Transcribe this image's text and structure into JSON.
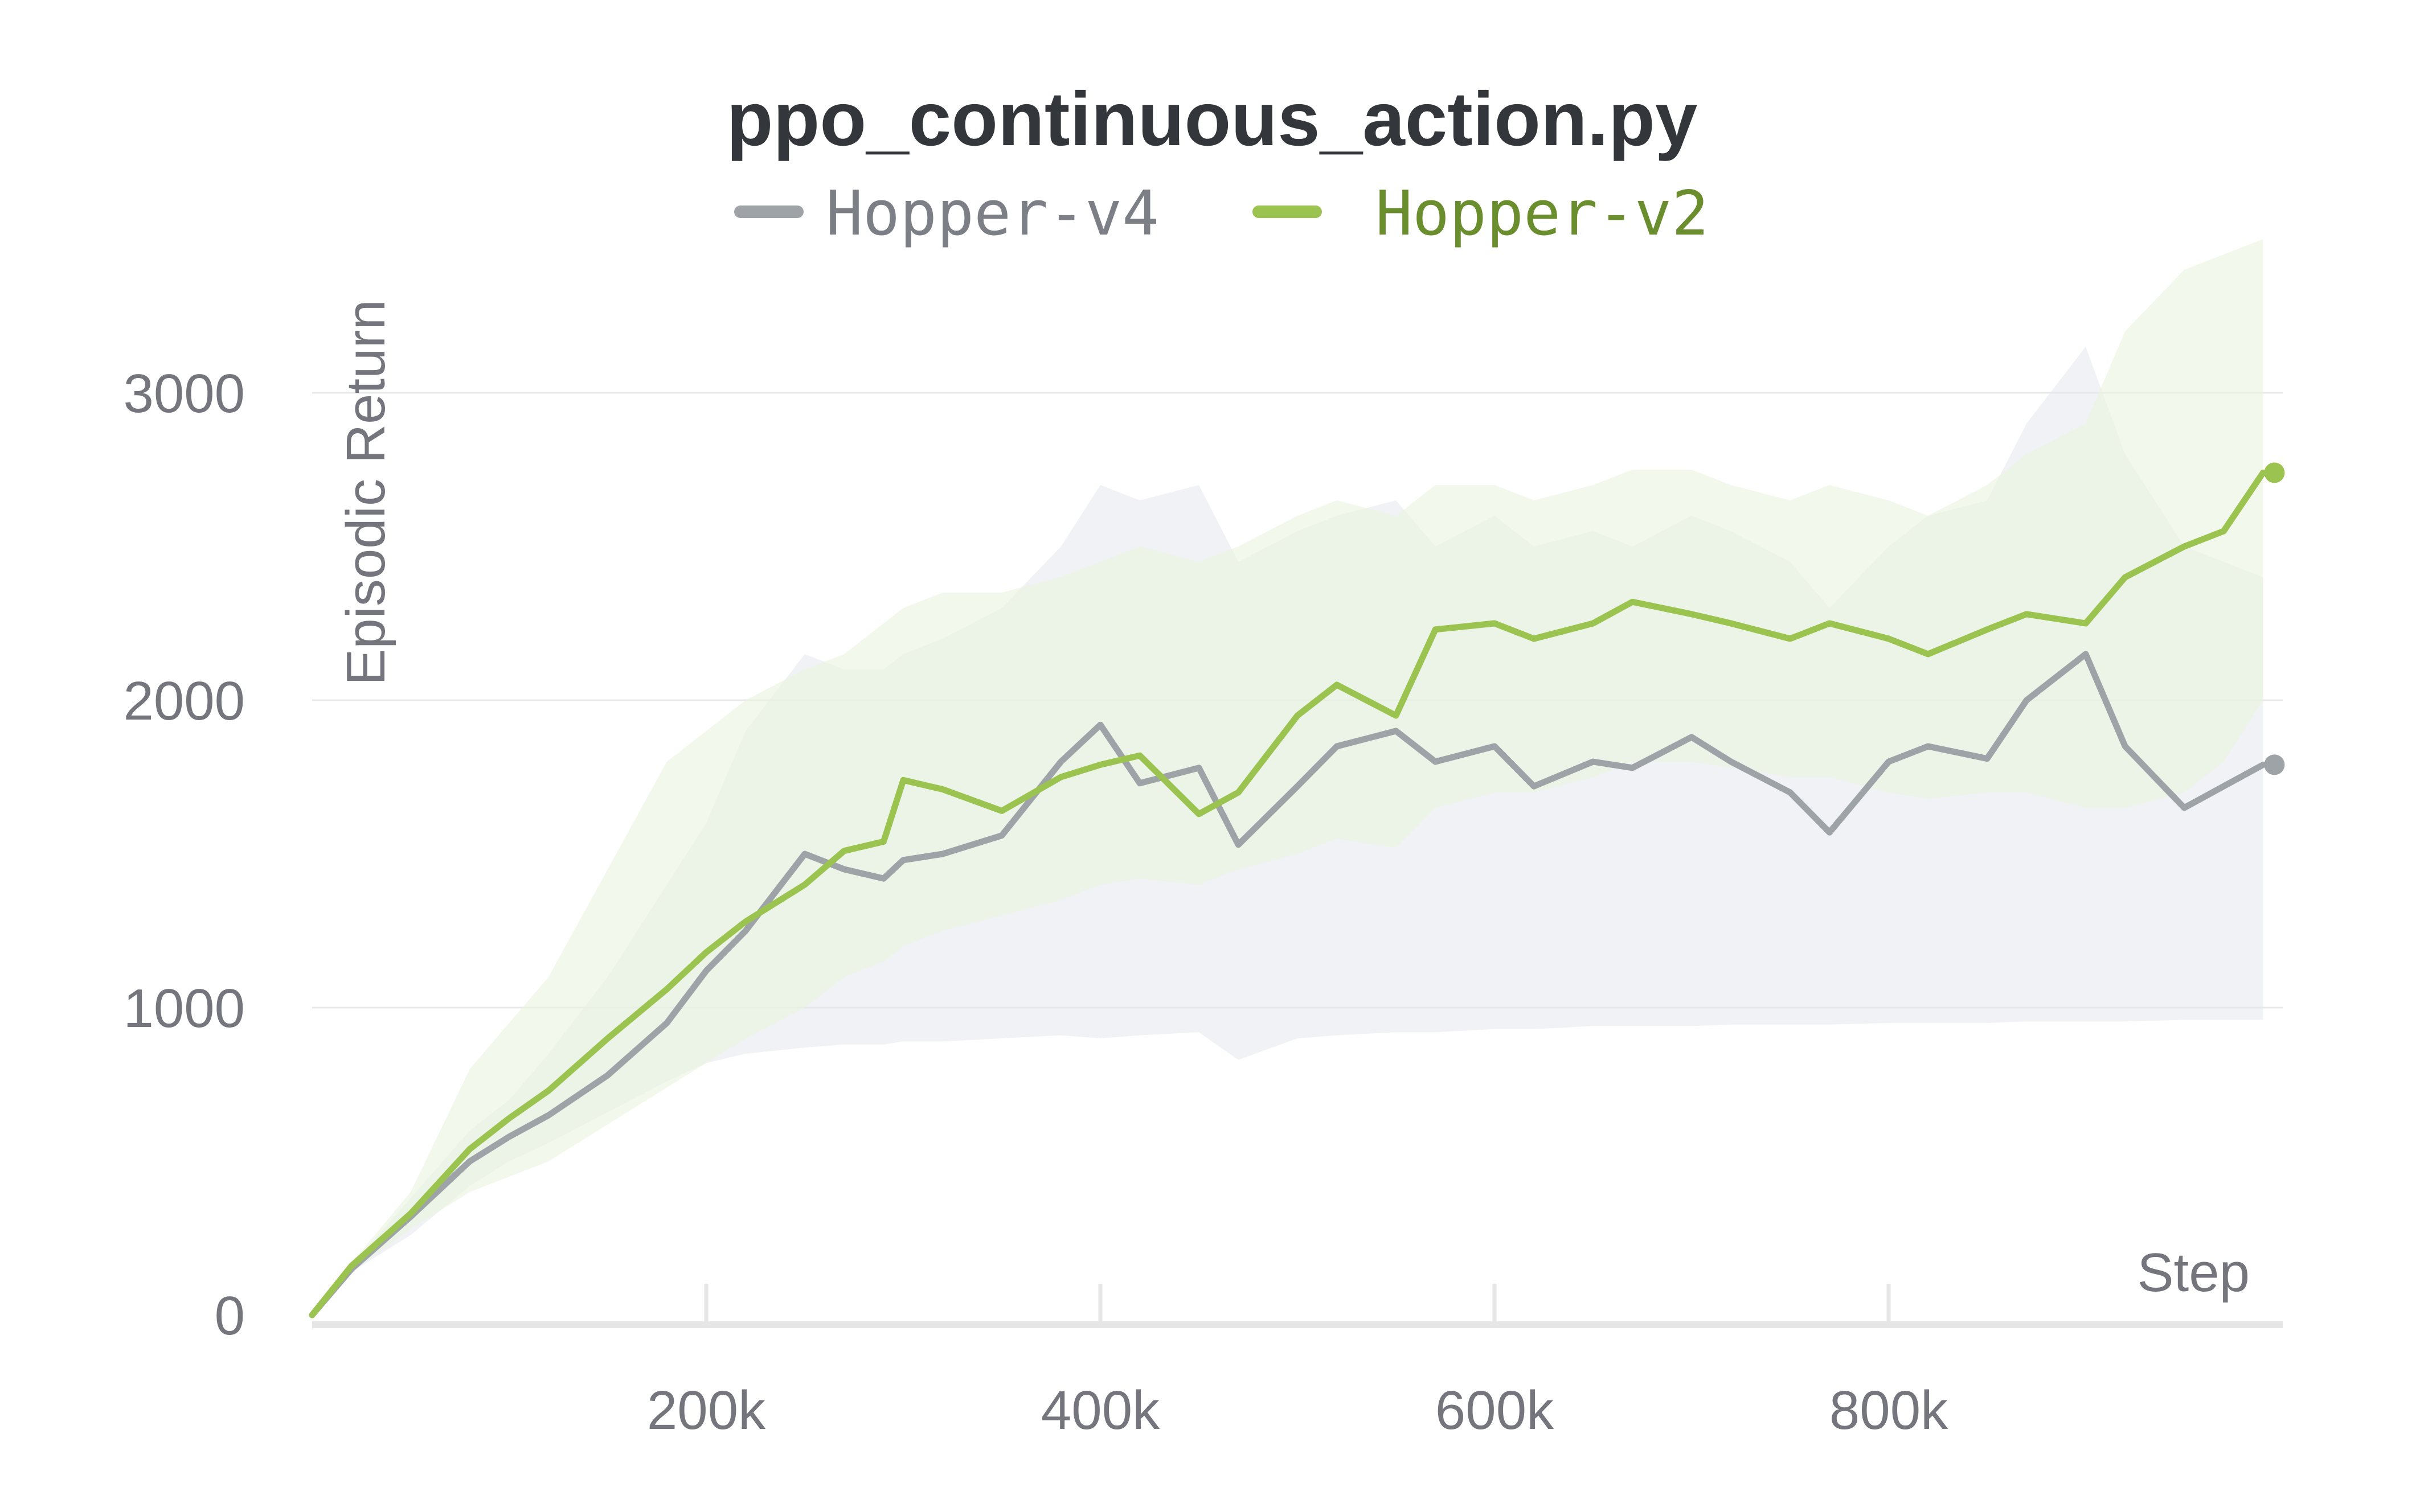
{
  "chart_data": {
    "type": "line",
    "title": "ppo_continuous_action.py",
    "xlabel": "Step",
    "ylabel": "Episodic Return",
    "xlim": [
      0,
      1000000
    ],
    "ylim": [
      0,
      3500
    ],
    "x_ticks": [
      {
        "value": 200000,
        "label": "200k"
      },
      {
        "value": 400000,
        "label": "400k"
      },
      {
        "value": 600000,
        "label": "600k"
      },
      {
        "value": 800000,
        "label": "800k"
      }
    ],
    "y_ticks": [
      {
        "value": 0,
        "label": "0"
      },
      {
        "value": 1000,
        "label": "1000"
      },
      {
        "value": 2000,
        "label": "2000"
      },
      {
        "value": 3000,
        "label": "3000"
      }
    ],
    "grid": true,
    "legend_position": "top",
    "x": [
      0,
      20000,
      50000,
      80000,
      100000,
      120000,
      150000,
      180000,
      200000,
      220000,
      250000,
      270000,
      290000,
      300000,
      320000,
      350000,
      380000,
      400000,
      420000,
      450000,
      470000,
      500000,
      520000,
      550000,
      570000,
      600000,
      620000,
      650000,
      670000,
      700000,
      720000,
      750000,
      770000,
      800000,
      820000,
      850000,
      870000,
      900000,
      920000,
      950000,
      970000,
      990000
    ],
    "series": [
      {
        "name": "Hopper-v4",
        "color": "#9ea3a8",
        "band_color": "#e6e8ec",
        "values": [
          0,
          150,
          320,
          500,
          580,
          650,
          780,
          950,
          1120,
          1250,
          1500,
          1450,
          1420,
          1480,
          1500,
          1560,
          1800,
          1920,
          1730,
          1780,
          1530,
          1720,
          1850,
          1900,
          1800,
          1850,
          1720,
          1800,
          1780,
          1880,
          1800,
          1700,
          1570,
          1800,
          1850,
          1810,
          2000,
          2150,
          1850,
          1650,
          1720,
          1790
        ],
        "band_upper": [
          0,
          160,
          380,
          600,
          700,
          850,
          1100,
          1400,
          1600,
          1900,
          2150,
          2100,
          2100,
          2150,
          2200,
          2300,
          2500,
          2700,
          2650,
          2700,
          2450,
          2550,
          2600,
          2650,
          2500,
          2600,
          2500,
          2550,
          2500,
          2600,
          2550,
          2450,
          2300,
          2500,
          2600,
          2650,
          2900,
          3150,
          2800,
          2500,
          2450,
          2400
        ],
        "band_lower": [
          0,
          140,
          260,
          420,
          500,
          560,
          660,
          760,
          820,
          850,
          870,
          880,
          880,
          890,
          890,
          900,
          910,
          900,
          910,
          920,
          830,
          900,
          910,
          920,
          920,
          930,
          930,
          940,
          940,
          940,
          945,
          945,
          945,
          950,
          950,
          950,
          955,
          955,
          955,
          960,
          960,
          960
        ]
      },
      {
        "name": "Hopper-v2",
        "color": "#9bc34f",
        "band_color": "#eaf3de",
        "values": [
          0,
          160,
          330,
          540,
          640,
          730,
          900,
          1060,
          1180,
          1280,
          1400,
          1510,
          1540,
          1740,
          1710,
          1640,
          1750,
          1790,
          1820,
          1630,
          1700,
          1950,
          2050,
          1950,
          2230,
          2250,
          2200,
          2250,
          2320,
          2280,
          2250,
          2200,
          2250,
          2200,
          2150,
          2230,
          2280,
          2250,
          2400,
          2500,
          2550,
          2740
        ],
        "band_upper": [
          0,
          170,
          400,
          800,
          950,
          1100,
          1450,
          1800,
          1900,
          2000,
          2100,
          2150,
          2250,
          2300,
          2350,
          2350,
          2400,
          2450,
          2500,
          2450,
          2500,
          2600,
          2650,
          2600,
          2700,
          2700,
          2650,
          2700,
          2750,
          2750,
          2700,
          2650,
          2700,
          2650,
          2600,
          2700,
          2800,
          2900,
          3200,
          3400,
          3450,
          3500
        ],
        "band_lower": [
          0,
          140,
          280,
          400,
          450,
          500,
          620,
          740,
          820,
          900,
          1000,
          1100,
          1150,
          1200,
          1250,
          1300,
          1350,
          1400,
          1420,
          1400,
          1450,
          1500,
          1550,
          1520,
          1650,
          1700,
          1700,
          1750,
          1800,
          1800,
          1780,
          1750,
          1750,
          1700,
          1680,
          1700,
          1700,
          1650,
          1650,
          1700,
          1800,
          2000
        ]
      }
    ]
  }
}
